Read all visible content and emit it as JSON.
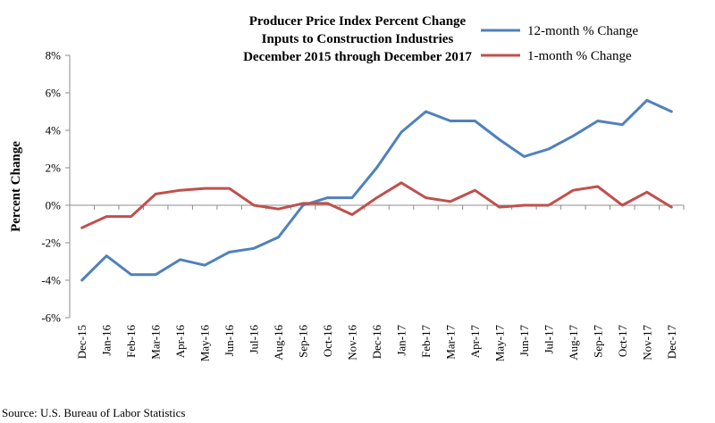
{
  "chart_data": {
    "type": "line",
    "title_lines": [
      "Producer Price Index Percent Change",
      "Inputs to Construction Industries",
      "December 2015 through December 2017"
    ],
    "xlabel": "",
    "ylabel": "Percent Change",
    "ylim": [
      -6,
      8
    ],
    "y_ticks": [
      8,
      6,
      4,
      2,
      0,
      -2,
      -4,
      -6
    ],
    "y_tick_labels": [
      "8%",
      "6%",
      "4%",
      "2%",
      "0%",
      "-2%",
      "-4%",
      "-6%"
    ],
    "categories": [
      "Dec-15",
      "Jan-16",
      "Feb-16",
      "Mar-16",
      "Apr-16",
      "May-16",
      "Jun-16",
      "Jul-16",
      "Aug-16",
      "Sep-16",
      "Oct-16",
      "Nov-16",
      "Dec-16",
      "Jan-17",
      "Feb-17",
      "Mar-17",
      "Apr-17",
      "May-17",
      "Jun-17",
      "Jul-17",
      "Aug-17",
      "Sep-17",
      "Oct-17",
      "Nov-17",
      "Dec-17"
    ],
    "legend_position": "top-right",
    "series": [
      {
        "name": "12-month % Change",
        "color": "#4f81bd",
        "values": [
          -4.0,
          -2.7,
          -3.7,
          -3.7,
          -2.9,
          -3.2,
          -2.5,
          -2.3,
          -1.7,
          0.0,
          0.4,
          0.4,
          2.0,
          3.9,
          5.0,
          4.5,
          4.5,
          3.5,
          2.6,
          3.0,
          3.7,
          4.5,
          4.3,
          5.6,
          5.0
        ]
      },
      {
        "name": "1-month % Change",
        "color": "#c0504d",
        "values": [
          -1.2,
          -0.6,
          -0.6,
          0.6,
          0.8,
          0.9,
          0.9,
          0.0,
          -0.2,
          0.1,
          0.1,
          -0.5,
          0.4,
          1.2,
          0.4,
          0.2,
          0.8,
          -0.1,
          0.0,
          0.0,
          0.8,
          1.0,
          0.0,
          0.7,
          -0.1
        ]
      }
    ],
    "source": "Source: U.S. Bureau of Labor Statistics"
  }
}
